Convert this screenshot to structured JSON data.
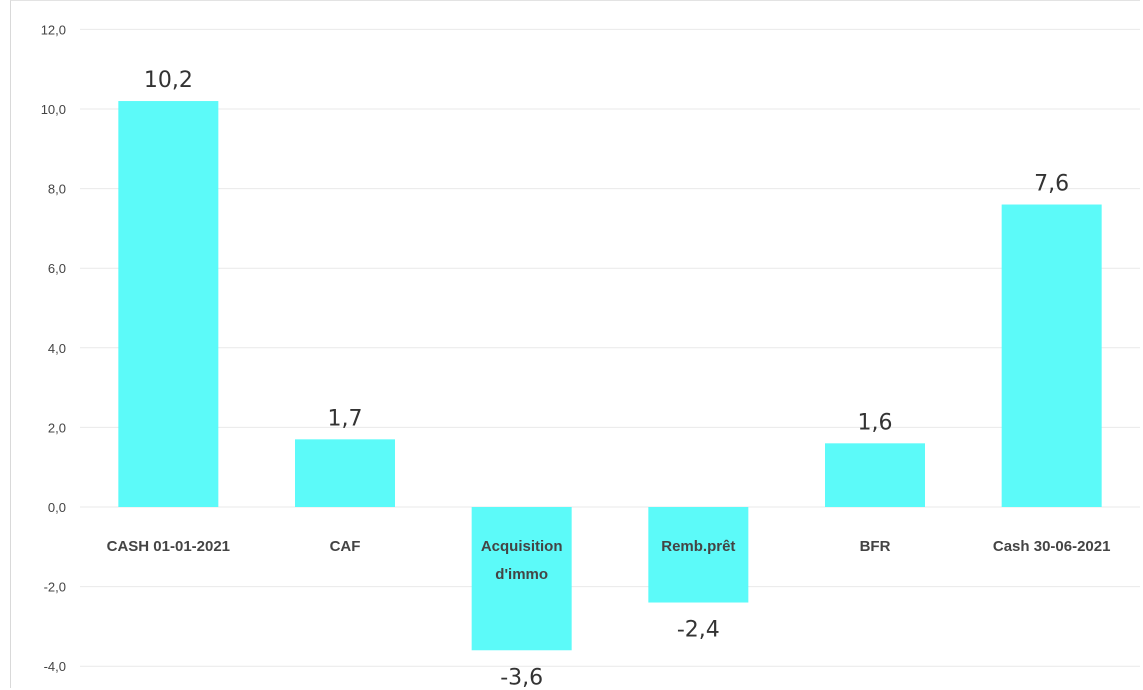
{
  "chart_data": {
    "type": "bar",
    "categories": [
      "CASH  01-01-2021",
      "CAF",
      "Acquisition d'immo",
      "Remb.prêt",
      "BFR",
      "Cash 30-06-2021"
    ],
    "category_lines": [
      [
        "CASH  01-01-2021"
      ],
      [
        "CAF"
      ],
      [
        "Acquisition",
        "d'immo"
      ],
      [
        "Remb.prêt"
      ],
      [
        "BFR"
      ],
      [
        "Cash 30-06-2021"
      ]
    ],
    "values": [
      10.2,
      1.7,
      -3.6,
      -2.4,
      1.6,
      7.6
    ],
    "value_labels": [
      "10,2",
      "1,7",
      "-3,6",
      "-2,4",
      "1,6",
      "7,6"
    ],
    "yticks": [
      -4,
      -2,
      0,
      2,
      4,
      6,
      8,
      10,
      12
    ],
    "ytick_labels": [
      "-4,0",
      "-2,0",
      "0,0",
      "2,0",
      "4,0",
      "6,0",
      "8,0",
      "10,0",
      "12,0"
    ],
    "ylim": [
      -4.5,
      12
    ],
    "title": "",
    "xlabel": "",
    "ylabel": "",
    "grid": true,
    "bar_color": "#5cfaf9"
  }
}
